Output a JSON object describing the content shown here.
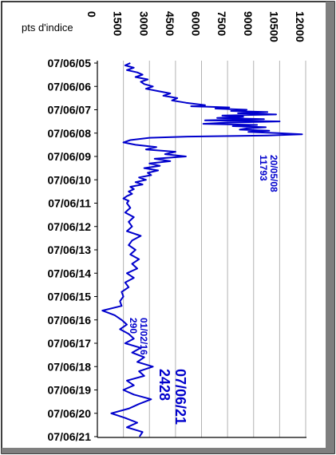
{
  "chart_data": {
    "type": "line",
    "unit_label": "pts d'indice",
    "y_ticks": [
      "0",
      "1500",
      "3000",
      "4500",
      "6000",
      "7500",
      "9000",
      "10500",
      "12000"
    ],
    "ylim": [
      0,
      12000
    ],
    "x_ticks": [
      "07/06/05",
      "07/06/06",
      "07/06/07",
      "07/06/08",
      "07/06/09",
      "07/06/10",
      "07/06/11",
      "07/06/12",
      "07/06/13",
      "07/06/14",
      "07/06/15",
      "07/06/16",
      "07/06/17",
      "07/06/18",
      "07/06/19",
      "07/06/20",
      "07/06/21"
    ],
    "grid": true,
    "series": [
      {
        "color": "#0000cc",
        "x": [
          0,
          0.1,
          0.2,
          0.3,
          0.4,
          0.5,
          0.6,
          0.7,
          0.8,
          0.9,
          1.0,
          1.1,
          1.2,
          1.3,
          1.4,
          1.5,
          1.6,
          1.7,
          1.8,
          1.85,
          1.9,
          1.95,
          2.0,
          2.05,
          2.1,
          2.15,
          2.2,
          2.25,
          2.3,
          2.35,
          2.4,
          2.45,
          2.5,
          2.55,
          2.6,
          2.65,
          2.7,
          2.75,
          2.8,
          2.85,
          2.9,
          2.95,
          3.0,
          3.05,
          3.1,
          3.15,
          3.2,
          3.3,
          3.4,
          3.5,
          3.6,
          3.7,
          3.8,
          3.9,
          4.0,
          4.1,
          4.2,
          4.3,
          4.4,
          4.5,
          4.6,
          4.7,
          4.8,
          4.9,
          5.0,
          5.1,
          5.2,
          5.3,
          5.4,
          5.5,
          5.6,
          5.7,
          5.8,
          5.9,
          6.0,
          6.2,
          6.4,
          6.6,
          6.8,
          7.0,
          7.2,
          7.4,
          7.6,
          7.8,
          8.0,
          8.2,
          8.4,
          8.6,
          8.8,
          9.0,
          9.2,
          9.4,
          9.6,
          9.8,
          10.0,
          10.2,
          10.4,
          10.6,
          10.8,
          11.0,
          11.2,
          11.4,
          11.6,
          11.8,
          12.0,
          12.2,
          12.4,
          12.6,
          12.8,
          13.0,
          13.2,
          13.4,
          13.6,
          13.8,
          14.0,
          14.2,
          14.4,
          14.6,
          14.8,
          15.0,
          15.2,
          15.4,
          15.6,
          15.8,
          16.0
        ],
        "values": [
          1900,
          1600,
          2100,
          1700,
          2300,
          2600,
          2200,
          2900,
          2500,
          2700,
          3200,
          2800,
          3500,
          4200,
          3800,
          4600,
          4300,
          5100,
          6200,
          5400,
          7600,
          6800,
          8600,
          7700,
          9800,
          8100,
          10300,
          7200,
          8400,
          6900,
          9600,
          6200,
          10500,
          7400,
          6100,
          9200,
          7800,
          9700,
          8600,
          8200,
          9900,
          8700,
          10400,
          11793,
          9800,
          5200,
          3000,
          1900,
          1500,
          2200,
          3400,
          2800,
          4500,
          3900,
          5100,
          3300,
          4200,
          3000,
          3600,
          2700,
          3500,
          2900,
          3100,
          2400,
          2800,
          2200,
          2600,
          1900,
          2100,
          1800,
          2000,
          1700,
          1500,
          1800,
          1700,
          1900,
          1600,
          2100,
          1800,
          2000,
          1700,
          2500,
          2000,
          1800,
          2200,
          1900,
          2400,
          2000,
          2300,
          1700,
          2100,
          1600,
          1800,
          1400,
          1500,
          1300,
          1400,
          290,
          1000,
          1400,
          1700,
          1300,
          1800,
          2100,
          1600,
          2500,
          2000,
          2700,
          2300,
          3200,
          2400,
          2700,
          1700,
          2100,
          1500,
          2100,
          3100,
          2400,
          1800,
          800,
          1600,
          2300,
          1700,
          2600,
          2428
        ]
      }
    ],
    "annotations": [
      {
        "date": "20/05/08",
        "value": "11793"
      },
      {
        "date": "01/02/16",
        "value": "290"
      },
      {
        "date": "07/06/21",
        "value": "2428"
      }
    ]
  }
}
